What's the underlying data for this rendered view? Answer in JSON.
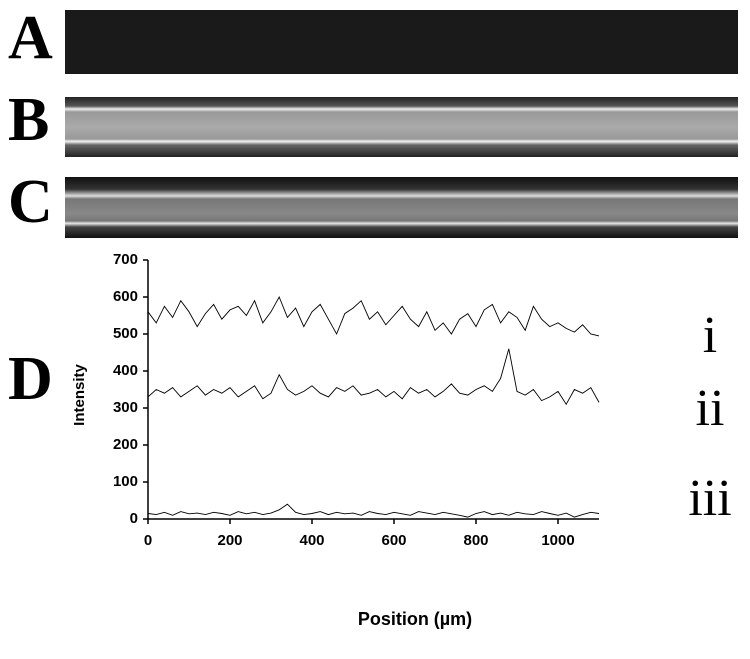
{
  "panel_labels": [
    "A",
    "B",
    "C"
  ],
  "chart_data": {
    "type": "line",
    "label": "D",
    "x_label": "Position (µm)",
    "y_label": "Intensity",
    "x": [
      0,
      20,
      40,
      60,
      80,
      100,
      120,
      140,
      160,
      180,
      200,
      220,
      240,
      260,
      280,
      300,
      320,
      340,
      360,
      380,
      400,
      420,
      440,
      460,
      480,
      500,
      520,
      540,
      560,
      580,
      600,
      620,
      640,
      660,
      680,
      700,
      720,
      740,
      760,
      780,
      800,
      820,
      840,
      860,
      880,
      900,
      920,
      940,
      960,
      980,
      1000,
      1020,
      1040,
      1060,
      1080,
      1100
    ],
    "series": [
      {
        "name": "i",
        "color": "#000000",
        "values": [
          560,
          530,
          575,
          545,
          590,
          560,
          520,
          555,
          580,
          540,
          565,
          575,
          550,
          590,
          530,
          560,
          600,
          545,
          570,
          520,
          560,
          580,
          540,
          500,
          555,
          570,
          590,
          540,
          560,
          525,
          550,
          575,
          540,
          520,
          560,
          510,
          530,
          500,
          540,
          555,
          520,
          565,
          580,
          530,
          560,
          545,
          510,
          575,
          540,
          520,
          530,
          515,
          505,
          525,
          500,
          495
        ]
      },
      {
        "name": "ii",
        "color": "#000000",
        "values": [
          330,
          350,
          340,
          355,
          330,
          345,
          360,
          335,
          350,
          340,
          355,
          330,
          345,
          360,
          325,
          340,
          390,
          350,
          335,
          345,
          360,
          340,
          330,
          355,
          345,
          360,
          335,
          340,
          350,
          330,
          345,
          325,
          355,
          340,
          350,
          330,
          345,
          365,
          340,
          335,
          350,
          360,
          345,
          380,
          460,
          345,
          335,
          350,
          320,
          330,
          345,
          310,
          350,
          340,
          355,
          315
        ]
      },
      {
        "name": "iii",
        "color": "#000000",
        "values": [
          15,
          12,
          18,
          10,
          20,
          14,
          16,
          12,
          18,
          15,
          10,
          20,
          14,
          18,
          12,
          16,
          25,
          40,
          18,
          12,
          15,
          20,
          12,
          18,
          14,
          16,
          10,
          20,
          15,
          12,
          18,
          14,
          10,
          20,
          16,
          12,
          18,
          14,
          10,
          5,
          15,
          20,
          12,
          16,
          10,
          18,
          14,
          12,
          20,
          15,
          10,
          16,
          5,
          12,
          18,
          15
        ]
      }
    ],
    "xlim": [
      0,
      1100
    ],
    "xticks": [
      0,
      200,
      400,
      600,
      800,
      1000
    ],
    "ylim": [
      0,
      700
    ],
    "yticks": [
      0,
      100,
      200,
      300,
      400,
      500,
      600,
      700
    ],
    "grid": false
  }
}
